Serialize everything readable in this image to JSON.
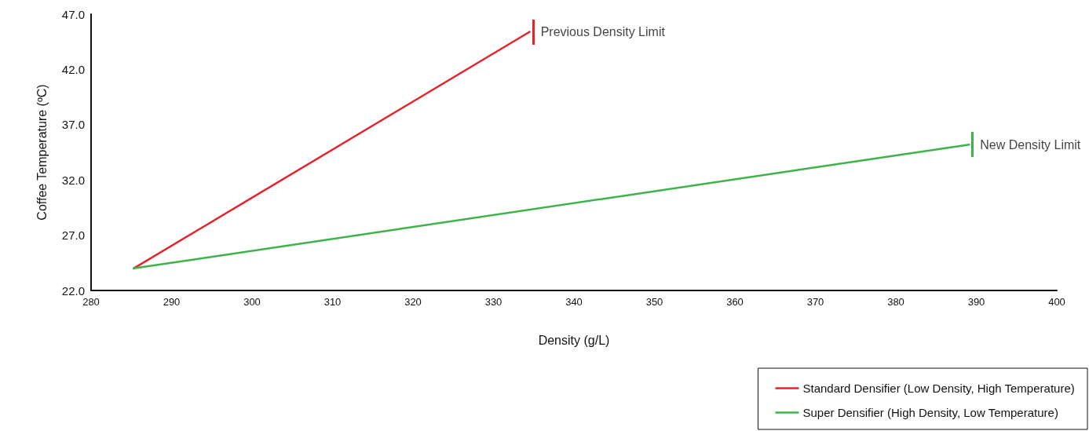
{
  "chart_data": {
    "type": "line",
    "xlabel": "Density (g/L)",
    "ylabel": "Coffee Temperature (ºC)",
    "series": [
      {
        "name": "Standard Densifier (Low Density, High Temperature)",
        "color": "#e8202a",
        "x": [
          285.3,
          334.5
        ],
        "values": [
          24.0,
          45.4
        ]
      },
      {
        "name": "Super Densifier (High Density, Low Temperature)",
        "color": "#3cb44a",
        "x": [
          285.3,
          389.1
        ],
        "values": [
          24.0,
          35.2
        ]
      }
    ],
    "xlim": [
      280,
      400
    ],
    "xticks": [
      280,
      290,
      300,
      310,
      320,
      330,
      340,
      350,
      360,
      370,
      380,
      390,
      400
    ],
    "ylim": [
      22,
      47
    ],
    "yticks": [
      {
        "value": 22,
        "label": "22.0"
      },
      {
        "value": 27,
        "label": "27.0"
      },
      {
        "value": 32,
        "label": "32.0"
      },
      {
        "value": 37,
        "label": "37.0"
      },
      {
        "value": 42,
        "label": "42.0"
      },
      {
        "value": 47,
        "label": "47.0"
      }
    ],
    "annotations": [
      {
        "text": "Previous Density Limit",
        "x": 334.5,
        "y": 45.4
      },
      {
        "text": "New Density Limit",
        "x": 389.1,
        "y": 35.2
      }
    ],
    "grid": false,
    "legend": "bottom right",
    "marker": "none",
    "line_style": "solid"
  }
}
